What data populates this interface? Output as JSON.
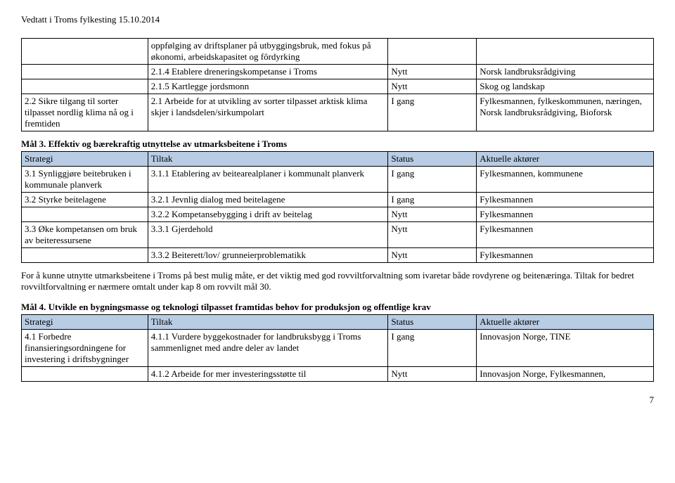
{
  "header": "Vedtatt i Troms fylkesting 15.10.2014",
  "table1": {
    "rows": [
      {
        "c0": "",
        "c1": "oppfølging av driftsplaner på utbyggingsbruk, med fokus på økonomi, arbeidskapasitet og fôrdyrking",
        "c2": "",
        "c3": ""
      },
      {
        "c0": "",
        "c1": "2.1.4 Etablere dreneringskompetanse i Troms",
        "c2": "Nytt",
        "c3": "Norsk landbruksrådgiving"
      },
      {
        "c0": "",
        "c1": "2.1.5 Kartlegge jordsmonn",
        "c2": "Nytt",
        "c3": "Skog og landskap"
      },
      {
        "c0": "2.2 Sikre tilgang til sorter tilpasset nordlig klima nå og i fremtiden",
        "c1": "2.1 Arbeide for at utvikling av sorter tilpasset arktisk klima skjer i landsdelen/sirkumpolart",
        "c2": "I gang",
        "c3": "Fylkesmannen, fylkeskommunen, næringen, Norsk landbruksrådgiving, Bioforsk"
      }
    ]
  },
  "section3_heading": "Mål 3. Effektiv og bærekraftig utnyttelse av utmarksbeitene i Troms",
  "table2_header": {
    "c0": "Strategi",
    "c1": "Tiltak",
    "c2": "Status",
    "c3": "Aktuelle aktører"
  },
  "table2_rows": [
    {
      "c0": "3.1 Synliggjøre beitebruken i kommunale planverk",
      "c1": "3.1.1 Etablering av beitearealplaner i kommunalt planverk",
      "c2": "I gang",
      "c3": "Fylkesmannen, kommunene"
    },
    {
      "c0": "3.2 Styrke beitelagene",
      "c1": "3.2.1 Jevnlig dialog med beitelagene",
      "c2": "I gang",
      "c3": "Fylkesmannen"
    },
    {
      "c0": "",
      "c1": "3.2.2 Kompetansebygging i drift av beitelag",
      "c2": "Nytt",
      "c3": "Fylkesmannen"
    },
    {
      "c0": "3.3 Øke kompetansen om bruk av beiteressursene",
      "c1": "3.3.1 Gjerdehold",
      "c2": "Nytt",
      "c3": "Fylkesmannen"
    },
    {
      "c0": "",
      "c1": "3.3.2 Beiterett/lov/ grunneierproblematikk",
      "c2": "Nytt",
      "c3": "Fylkesmannen"
    }
  ],
  "section3_para": "For å kunne utnytte utmarksbeitene i Troms på best mulig måte, er det viktig med god rovviltforvaltning som ivaretar både rovdyrene og beitenæringa. Tiltak for bedret rovviltforvaltning er nærmere omtalt under kap 8 om rovvilt mål 30.",
  "section4_heading": "Mål 4. Utvikle en bygningsmasse og teknologi tilpasset framtidas behov for produksjon og offentlige krav",
  "table3_header": {
    "c0": "Strategi",
    "c1": "Tiltak",
    "c2": "Status",
    "c3": "Aktuelle aktører"
  },
  "table3_rows": [
    {
      "c0": "4.1 Forbedre finansieringsordningene for investering i driftsbygninger",
      "c1": "4.1.1 Vurdere byggekostnader for landbruksbygg i Troms sammenlignet med andre deler av landet",
      "c2": "I gang",
      "c3": "Innovasjon Norge, TINE"
    },
    {
      "c0": "",
      "c1": "4.1.2 Arbeide for mer investeringsstøtte til",
      "c2": "Nytt",
      "c3": "Innovasjon Norge, Fylkesmannen,"
    }
  ],
  "page_number": "7"
}
